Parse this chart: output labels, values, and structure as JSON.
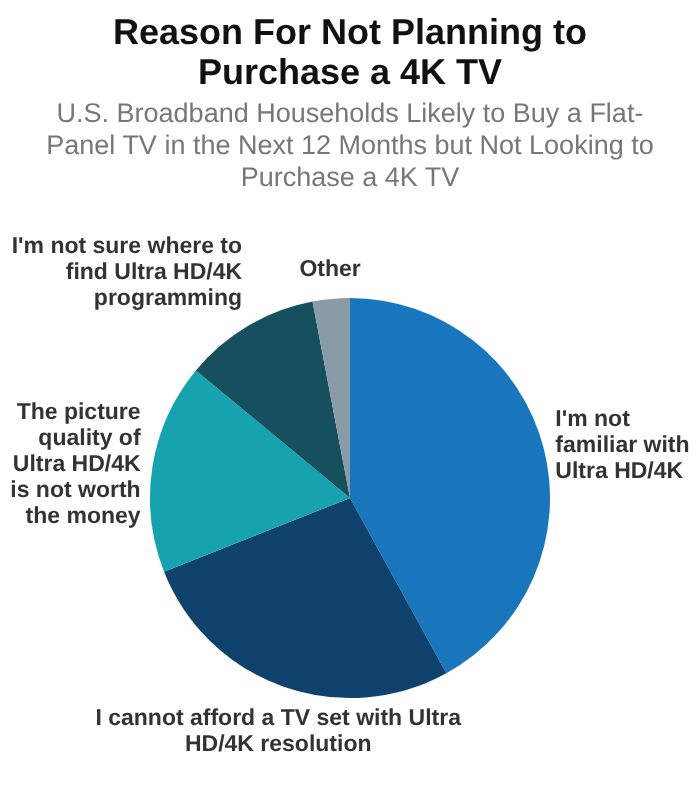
{
  "chart_data": {
    "type": "pie",
    "title": "Reason For Not Planning to Purchase a 4K TV",
    "subtitle": "U.S. Broadband Households Likely to Buy a Flat-Panel TV in the Next 12 Months but Not Looking to Purchase a 4K TV",
    "categories": [
      "I'm not familiar with Ultra HD/4K",
      "I cannot afford a TV set with Ultra HD/4K resolution",
      "The picture quality of Ultra HD/4K is not worth the money",
      "I'm not sure where to find Ultra HD/4K programming",
      "Other"
    ],
    "values": [
      42,
      27,
      17,
      11,
      3
    ],
    "colors": [
      "#1976bc",
      "#0e416c",
      "#17a2b0",
      "#16505e",
      "#8a9ba8"
    ],
    "legend": false
  }
}
